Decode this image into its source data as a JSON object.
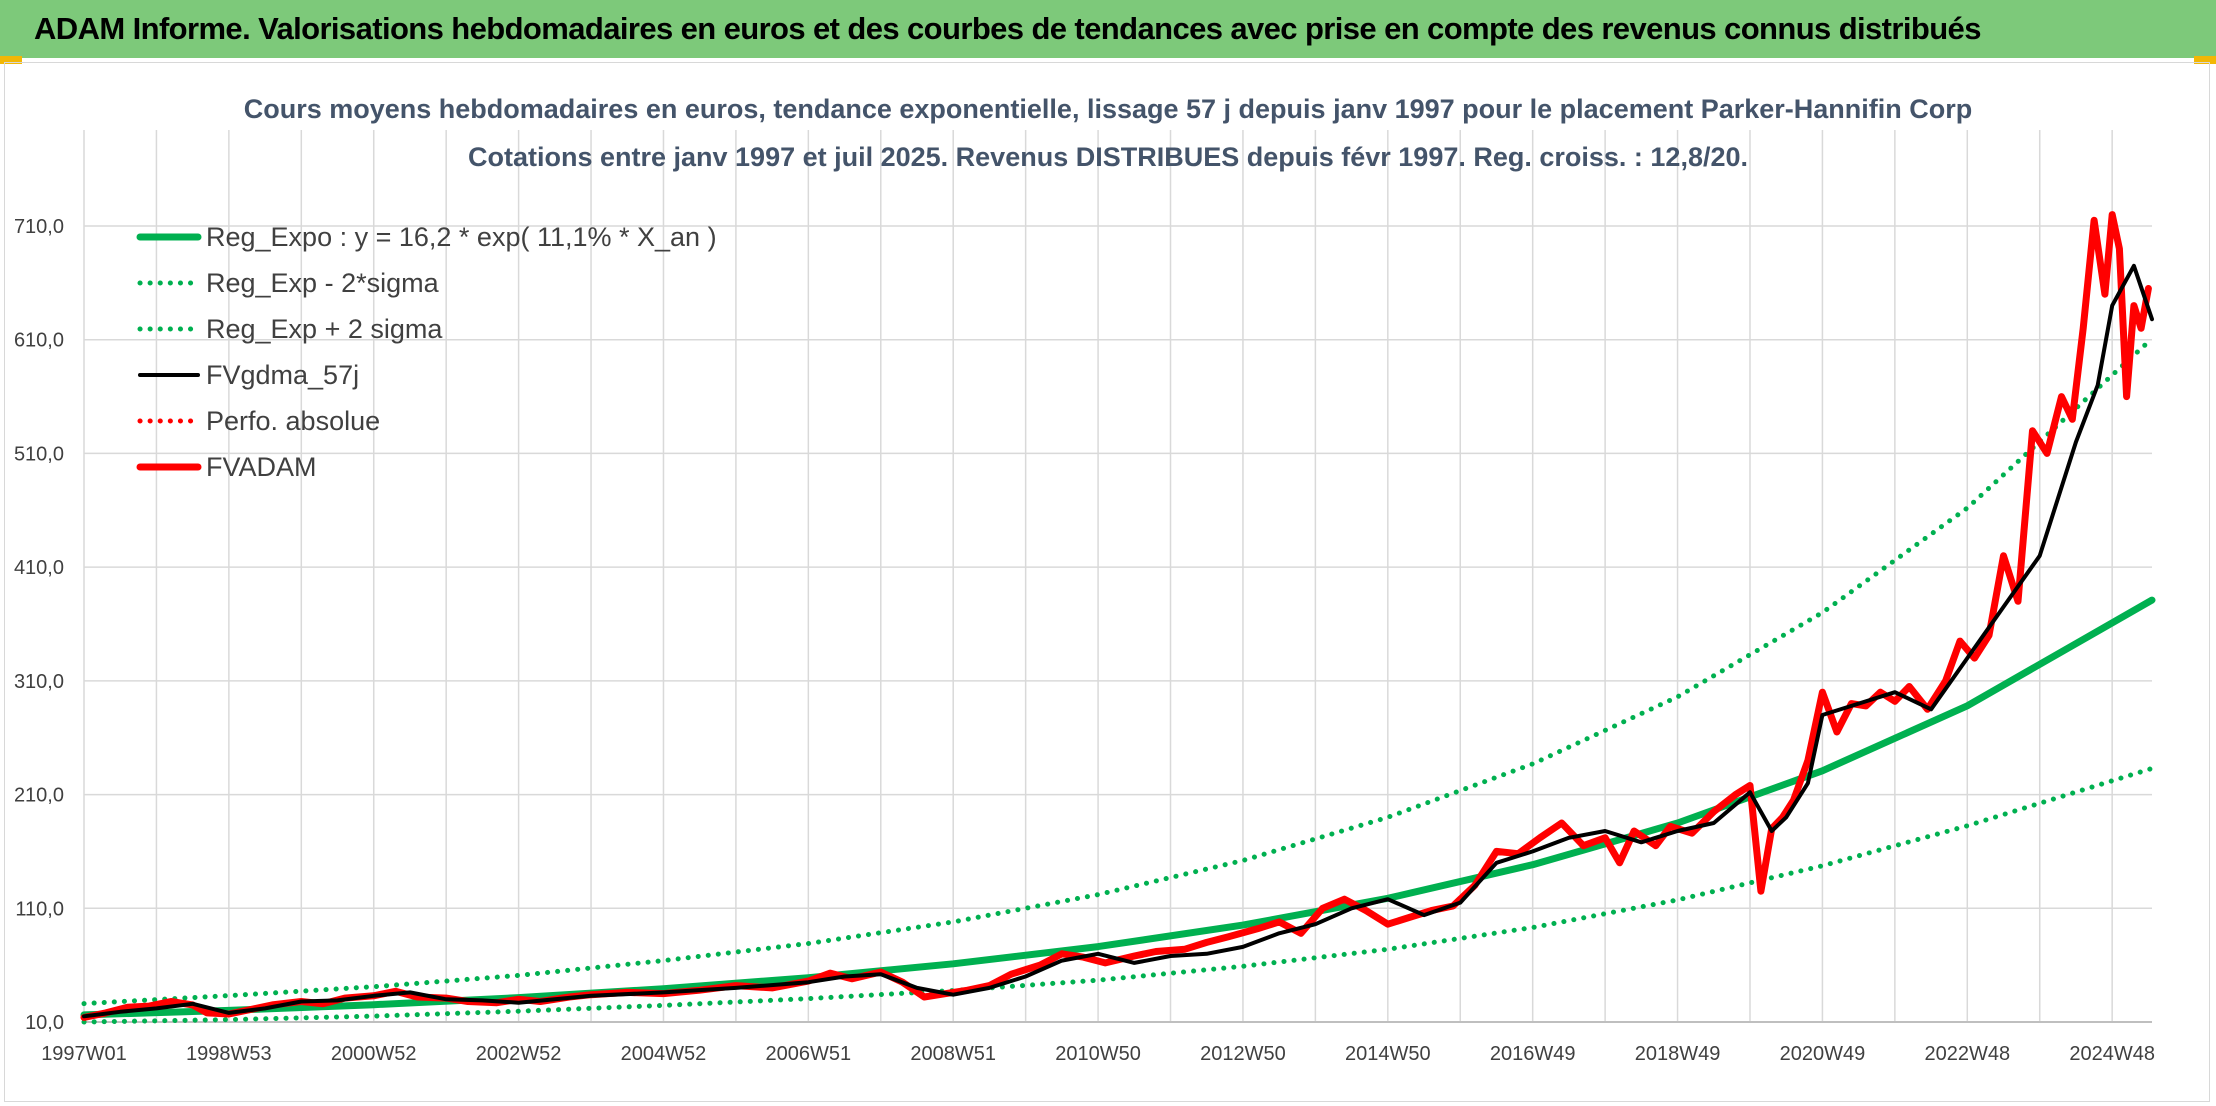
{
  "header": {
    "banner_title": "ADAM Informe. Valorisations hebdomadaires en euros et des courbes de tendances avec prise en compte des revenus connus distribués"
  },
  "colors": {
    "banner_bg": "#7dc97a",
    "trend_green": "#00b050",
    "price_red": "#ff0000",
    "smooth_black": "#000000",
    "grid": "#d9d9d9"
  },
  "chart_data": {
    "type": "line",
    "title": "Cours moyens hebdomadaires en euros, tendance exponentielle, lissage 57 j depuis janv 1997 pour le placement Parker-Hannifin Corp",
    "subtitle": "Cotations entre janv 1997 et juil 2025. Revenus DISTRIBUES depuis févr 1997. Reg. croiss. : 12,8/20.",
    "xlabel": "",
    "ylabel": "",
    "x_ticks": [
      "1997W01",
      "1998W53",
      "2000W52",
      "2002W52",
      "2004W52",
      "2006W51",
      "2008W51",
      "2010W50",
      "2012W50",
      "2014W50",
      "2016W49",
      "2018W49",
      "2020W49",
      "2022W48",
      "2024W48"
    ],
    "xlim": [
      1997.0,
      2025.55
    ],
    "y_ticks": [
      "10,0",
      "110,0",
      "210,0",
      "310,0",
      "410,0",
      "510,0",
      "610,0",
      "710,0"
    ],
    "ylim": [
      10,
      710
    ],
    "grid": true,
    "legend_position": "top-left",
    "series": [
      {
        "name": "Reg_Expo : y = 16,2 * exp( 11,1% *  X_an )",
        "style": "solid-thick",
        "color": "#00b050",
        "x": [
          1997.0,
          1999.0,
          2001.0,
          2003.0,
          2005.0,
          2007.0,
          2009.0,
          2011.0,
          2013.0,
          2015.0,
          2017.0,
          2019.0,
          2021.0,
          2023.0,
          2025.55
        ],
        "y": [
          16.2,
          20.2,
          25.2,
          31.5,
          39.3,
          49.0,
          61.2,
          76.3,
          95.2,
          118.8,
          148.3,
          185.0,
          230.9,
          288.1,
          381.0
        ]
      },
      {
        "name": "Reg_Exp - 2*sigma",
        "style": "dotted",
        "color": "#00b050",
        "x": [
          1997.0,
          1999.0,
          2001.0,
          2003.0,
          2005.0,
          2007.0,
          2009.0,
          2011.0,
          2013.0,
          2015.0,
          2017.0,
          2019.0,
          2021.0,
          2023.0,
          2025.55
        ],
        "y": [
          10.0,
          12.1,
          15.2,
          19.5,
          24.6,
          30.6,
          37.7,
          46.8,
          59.0,
          73.9,
          93.1,
          117.4,
          147.4,
          182.5,
          233.0
        ]
      },
      {
        "name": "Reg_Exp + 2 sigma",
        "style": "dotted",
        "color": "#00b050",
        "x": [
          1997.0,
          1999.0,
          2001.0,
          2003.0,
          2005.0,
          2007.0,
          2009.0,
          2011.0,
          2013.0,
          2015.0,
          2017.0,
          2019.0,
          2021.0,
          2023.0,
          2025.55
        ],
        "y": [
          26.2,
          33.2,
          41.0,
          51.0,
          64.0,
          79.0,
          98.0,
          122.0,
          152.0,
          190.0,
          237.0,
          296.0,
          370.0,
          462.0,
          611.0
        ]
      },
      {
        "name": "FVgdma_57j",
        "style": "solid",
        "color": "#000000",
        "x": [
          1997.0,
          1997.5,
          1998.0,
          1998.5,
          1999.0,
          1999.5,
          2000.0,
          2000.5,
          2001.0,
          2001.5,
          2002.0,
          2002.5,
          2003.0,
          2003.5,
          2004.0,
          2005.0,
          2006.0,
          2007.0,
          2007.5,
          2008.0,
          2008.5,
          2009.0,
          2009.5,
          2010.0,
          2010.5,
          2011.0,
          2011.5,
          2012.0,
          2012.5,
          2013.0,
          2013.5,
          2014.0,
          2014.5,
          2015.0,
          2015.5,
          2016.0,
          2016.5,
          2017.0,
          2017.5,
          2018.0,
          2018.5,
          2019.0,
          2019.5,
          2020.0,
          2020.3,
          2020.5,
          2020.8,
          2021.0,
          2021.5,
          2022.0,
          2022.5,
          2023.0,
          2023.5,
          2024.0,
          2024.5,
          2024.8,
          2025.0,
          2025.3,
          2025.55
        ],
        "y": [
          15.0,
          19.0,
          22.0,
          26.0,
          18.0,
          22.0,
          28.0,
          29.0,
          33.0,
          36.0,
          30.0,
          29.0,
          27.0,
          30.0,
          33.0,
          36.0,
          40.0,
          45.0,
          50.0,
          52.0,
          40.0,
          34.0,
          40.0,
          50.0,
          64.0,
          70.0,
          62.0,
          68.0,
          70.0,
          76.0,
          88.0,
          96.0,
          110.0,
          118.0,
          104.0,
          115.0,
          150.0,
          160.0,
          172.0,
          178.0,
          168.0,
          178.0,
          185.0,
          212.0,
          178.0,
          190.0,
          220.0,
          280.0,
          290.0,
          300.0,
          285.0,
          330.0,
          375.0,
          420.0,
          520.0,
          570.0,
          640.0,
          675.0,
          628.0
        ]
      },
      {
        "name": "Perfo. absolue",
        "style": "dotted",
        "color": "#ff0000",
        "x": [],
        "y": []
      },
      {
        "name": "FVADAM",
        "style": "solid-thick",
        "color": "#ff0000",
        "x": [
          1997.0,
          1997.3,
          1997.6,
          1997.9,
          1998.2,
          1998.5,
          1998.7,
          1999.0,
          1999.3,
          1999.6,
          2000.0,
          2000.3,
          2000.6,
          2001.0,
          2001.3,
          2001.6,
          2002.0,
          2002.3,
          2002.7,
          2003.0,
          2003.3,
          2003.7,
          2004.0,
          2004.5,
          2005.0,
          2005.5,
          2006.0,
          2006.5,
          2007.0,
          2007.3,
          2007.6,
          2008.0,
          2008.3,
          2008.6,
          2008.9,
          2009.2,
          2009.5,
          2009.8,
          2010.2,
          2010.5,
          2010.8,
          2011.1,
          2011.5,
          2011.8,
          2012.2,
          2012.5,
          2012.8,
          2013.2,
          2013.5,
          2013.8,
          2014.1,
          2014.4,
          2014.7,
          2015.0,
          2015.3,
          2015.6,
          2015.9,
          2016.2,
          2016.5,
          2016.8,
          2017.1,
          2017.4,
          2017.7,
          2018.0,
          2018.2,
          2018.4,
          2018.7,
          2018.9,
          2019.2,
          2019.5,
          2019.8,
          2020.0,
          2020.15,
          2020.3,
          2020.45,
          2020.6,
          2020.8,
          2021.0,
          2021.2,
          2021.4,
          2021.6,
          2021.8,
          2022.0,
          2022.2,
          2022.45,
          2022.7,
          2022.9,
          2023.1,
          2023.3,
          2023.5,
          2023.7,
          2023.9,
          2024.1,
          2024.3,
          2024.45,
          2024.6,
          2024.75,
          2024.9,
          2025.0,
          2025.1,
          2025.2,
          2025.3,
          2025.4,
          2025.5
        ],
        "y": [
          14.0,
          18.0,
          23.0,
          24.0,
          28.0,
          25.0,
          18.0,
          17.0,
          21.0,
          25.0,
          28.0,
          26.0,
          31.0,
          33.0,
          37.0,
          32.0,
          31.0,
          28.0,
          27.0,
          30.0,
          28.0,
          32.0,
          34.0,
          36.0,
          35.0,
          38.0,
          42.0,
          40.0,
          46.0,
          53.0,
          48.0,
          54.0,
          45.0,
          32.0,
          35.0,
          38.0,
          42.0,
          52.0,
          60.0,
          70.0,
          67.0,
          62.0,
          68.0,
          72.0,
          74.0,
          80.0,
          85.0,
          92.0,
          98.0,
          88.0,
          110.0,
          118.0,
          108.0,
          96.0,
          102.0,
          108.0,
          112.0,
          130.0,
          160.0,
          158.0,
          172.0,
          185.0,
          165.0,
          172.0,
          150.0,
          178.0,
          165.0,
          182.0,
          176.0,
          195.0,
          210.0,
          218.0,
          125.0,
          180.0,
          190.0,
          205.0,
          240.0,
          300.0,
          265.0,
          290.0,
          288.0,
          300.0,
          292.0,
          305.0,
          285.0,
          310.0,
          345.0,
          330.0,
          350.0,
          420.0,
          380.0,
          530.0,
          510.0,
          560.0,
          540.0,
          620.0,
          715.0,
          650.0,
          720.0,
          690.0,
          560.0,
          640.0,
          620.0,
          655.0
        ]
      }
    ]
  }
}
